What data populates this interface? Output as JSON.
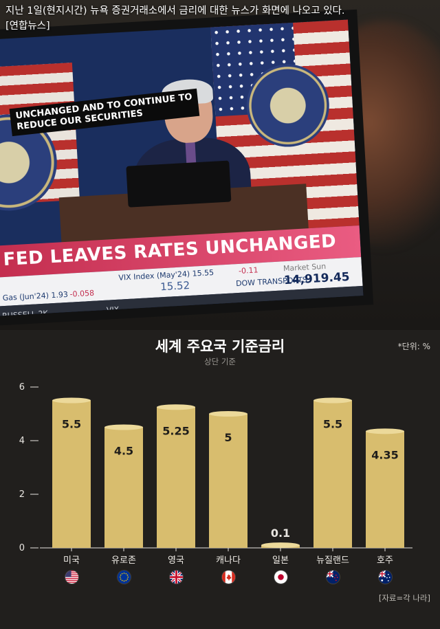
{
  "photo": {
    "caption_line1": "지난 1일(현지시간) 뉴욕 증권거래소에서 금리에 대한 뉴스가 화면에 나오고 있다.",
    "caption_line2": "[연합뉴스]",
    "screen": {
      "caption_box_line1": "UNCHANGED AND TO CONTINUE TO",
      "caption_box_line2": "REDUCE OUR SECURITIES",
      "headline": "FED LEAVES RATES UNCHANGED",
      "ticker_items": [
        {
          "text": "VIX Index (May'24) 15.55",
          "cls": "tk"
        },
        {
          "text": "-0.11",
          "cls": "tk neg"
        },
        {
          "text": "Market Sun",
          "cls": "tk market"
        },
        {
          "text": "Gas (Jun'24) 1.93",
          "cls": "tk"
        },
        {
          "text": "-0.058",
          "cls": "tk neg"
        },
        {
          "text": "15.52",
          "cls": "tk mid"
        },
        {
          "text": "DOW TRANSPORTS",
          "cls": "tk"
        },
        {
          "text": "14,919.45",
          "cls": "tk big"
        }
      ],
      "bottom_items": [
        "RUSSELL 2K",
        "VIX"
      ]
    }
  },
  "chart": {
    "title": "세계 주요국 기준금리",
    "subtitle": "상단 기준",
    "unit": "*단위: %",
    "source": "[자료=각 나라]",
    "bar_color": "#d8bd6e",
    "bar_top_color": "#ecd99a",
    "axis_color": "#e9e6e1"
  },
  "chart_data": {
    "type": "bar",
    "title": "세계 주요국 기준금리",
    "subtitle": "상단 기준",
    "unit": "%",
    "categories": [
      "미국",
      "유로존",
      "영국",
      "캐나다",
      "일본",
      "뉴질랜드",
      "호주"
    ],
    "values": [
      5.5,
      4.5,
      5.25,
      5,
      0.1,
      5.5,
      4.35
    ],
    "value_labels": [
      "5.5",
      "4.5",
      "5.25",
      "5",
      "0.1",
      "5.5",
      "4.35"
    ],
    "yticks": [
      0,
      2,
      4,
      6
    ],
    "ylim": [
      0,
      6
    ],
    "grid": false,
    "flags": [
      "us-flag-icon",
      "eu-flag-icon",
      "uk-flag-icon",
      "canada-flag-icon",
      "japan-flag-icon",
      "new-zealand-flag-icon",
      "australia-flag-icon"
    ]
  }
}
